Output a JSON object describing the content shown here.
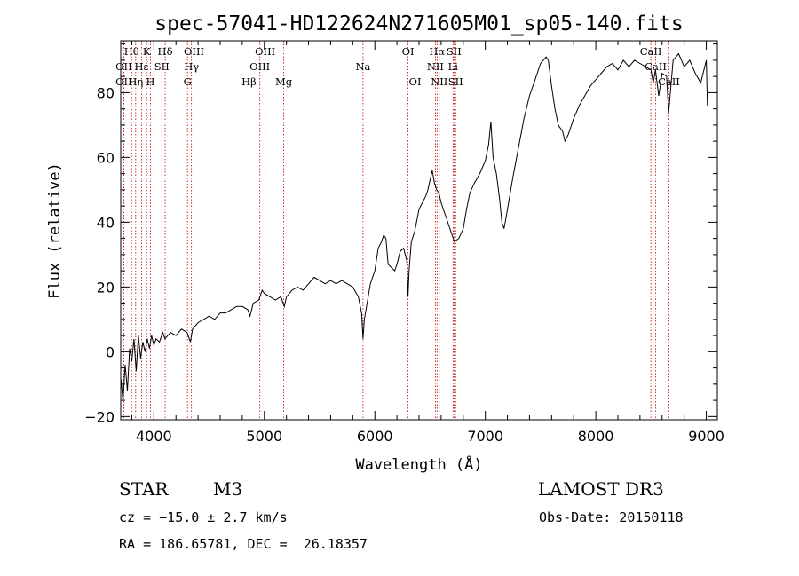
{
  "chart_data": {
    "type": "line",
    "title": "spec-57041-HD122624N271605M01_sp05-140.fits",
    "xlabel": "Wavelength (Å)",
    "ylabel": "Flux (relative)",
    "xlim": [
      3700,
      9100
    ],
    "ylim": [
      -21,
      96
    ],
    "xticks": [
      4000,
      5000,
      6000,
      7000,
      8000,
      9000
    ],
    "yticks": [
      -20,
      0,
      20,
      40,
      60,
      80
    ],
    "series": [
      {
        "name": "spectrum",
        "points": [
          [
            3700,
            -8
          ],
          [
            3720,
            -15
          ],
          [
            3740,
            -4
          ],
          [
            3760,
            -12
          ],
          [
            3780,
            1
          ],
          [
            3800,
            -3
          ],
          [
            3820,
            4
          ],
          [
            3840,
            -6
          ],
          [
            3860,
            5
          ],
          [
            3880,
            -2
          ],
          [
            3900,
            3
          ],
          [
            3920,
            0
          ],
          [
            3940,
            4
          ],
          [
            3960,
            1
          ],
          [
            3980,
            5
          ],
          [
            4000,
            2
          ],
          [
            4020,
            4
          ],
          [
            4050,
            3
          ],
          [
            4080,
            6
          ],
          [
            4100,
            4
          ],
          [
            4150,
            6
          ],
          [
            4200,
            5
          ],
          [
            4250,
            7
          ],
          [
            4300,
            6
          ],
          [
            4330,
            3
          ],
          [
            4350,
            7
          ],
          [
            4400,
            9
          ],
          [
            4450,
            10
          ],
          [
            4500,
            11
          ],
          [
            4550,
            10
          ],
          [
            4600,
            12
          ],
          [
            4650,
            12
          ],
          [
            4700,
            13
          ],
          [
            4750,
            14
          ],
          [
            4800,
            14
          ],
          [
            4850,
            13
          ],
          [
            4870,
            11
          ],
          [
            4900,
            15
          ],
          [
            4950,
            16
          ],
          [
            4980,
            19
          ],
          [
            5000,
            18
          ],
          [
            5050,
            17
          ],
          [
            5100,
            16
          ],
          [
            5150,
            17
          ],
          [
            5180,
            14
          ],
          [
            5200,
            17
          ],
          [
            5250,
            19
          ],
          [
            5300,
            20
          ],
          [
            5350,
            19
          ],
          [
            5400,
            21
          ],
          [
            5450,
            23
          ],
          [
            5500,
            22
          ],
          [
            5550,
            21
          ],
          [
            5600,
            22
          ],
          [
            5650,
            21
          ],
          [
            5700,
            22
          ],
          [
            5750,
            21
          ],
          [
            5800,
            20
          ],
          [
            5850,
            17
          ],
          [
            5880,
            12
          ],
          [
            5893,
            4
          ],
          [
            5905,
            10
          ],
          [
            5930,
            15
          ],
          [
            5960,
            21
          ],
          [
            6000,
            25
          ],
          [
            6030,
            32
          ],
          [
            6060,
            34
          ],
          [
            6080,
            36
          ],
          [
            6100,
            35
          ],
          [
            6120,
            27
          ],
          [
            6150,
            26
          ],
          [
            6180,
            25
          ],
          [
            6200,
            27
          ],
          [
            6230,
            31
          ],
          [
            6260,
            32
          ],
          [
            6290,
            28
          ],
          [
            6300,
            17
          ],
          [
            6310,
            25
          ],
          [
            6330,
            34
          ],
          [
            6360,
            37
          ],
          [
            6400,
            44
          ],
          [
            6430,
            46
          ],
          [
            6460,
            48
          ],
          [
            6480,
            50
          ],
          [
            6500,
            53
          ],
          [
            6520,
            56
          ],
          [
            6540,
            52
          ],
          [
            6560,
            50
          ],
          [
            6580,
            49
          ],
          [
            6600,
            46
          ],
          [
            6640,
            42
          ],
          [
            6680,
            38
          ],
          [
            6700,
            36
          ],
          [
            6720,
            34
          ],
          [
            6760,
            35
          ],
          [
            6800,
            38
          ],
          [
            6830,
            44
          ],
          [
            6860,
            49
          ],
          [
            6900,
            52
          ],
          [
            6950,
            55
          ],
          [
            7000,
            59
          ],
          [
            7030,
            64
          ],
          [
            7050,
            71
          ],
          [
            7070,
            60
          ],
          [
            7100,
            55
          ],
          [
            7130,
            47
          ],
          [
            7150,
            40
          ],
          [
            7170,
            38
          ],
          [
            7200,
            44
          ],
          [
            7250,
            54
          ],
          [
            7300,
            63
          ],
          [
            7350,
            72
          ],
          [
            7400,
            79
          ],
          [
            7450,
            84
          ],
          [
            7500,
            89
          ],
          [
            7550,
            91
          ],
          [
            7570,
            90
          ],
          [
            7600,
            82
          ],
          [
            7630,
            75
          ],
          [
            7660,
            70
          ],
          [
            7700,
            68
          ],
          [
            7720,
            65
          ],
          [
            7750,
            67
          ],
          [
            7800,
            72
          ],
          [
            7850,
            76
          ],
          [
            7900,
            79
          ],
          [
            7950,
            82
          ],
          [
            8000,
            84
          ],
          [
            8050,
            86
          ],
          [
            8100,
            88
          ],
          [
            8150,
            89
          ],
          [
            8200,
            87
          ],
          [
            8250,
            90
          ],
          [
            8300,
            88
          ],
          [
            8350,
            90
          ],
          [
            8400,
            89
          ],
          [
            8450,
            88
          ],
          [
            8500,
            87
          ],
          [
            8520,
            83
          ],
          [
            8540,
            87
          ],
          [
            8570,
            79
          ],
          [
            8600,
            86
          ],
          [
            8640,
            85
          ],
          [
            8660,
            74
          ],
          [
            8700,
            90
          ],
          [
            8750,
            92
          ],
          [
            8800,
            88
          ],
          [
            8850,
            90
          ],
          [
            8900,
            86
          ],
          [
            8950,
            83
          ],
          [
            9000,
            90
          ],
          [
            9010,
            76
          ]
        ]
      }
    ],
    "spectral_lines": [
      {
        "label": "Hθ",
        "wavelength": 3798,
        "row": 0
      },
      {
        "label": "OII",
        "wavelength": 3727,
        "row": 1
      },
      {
        "label": "OII",
        "wavelength": 3727,
        "row": 2
      },
      {
        "label": "Hε",
        "wavelength": 3889,
        "row": 1
      },
      {
        "label": "Hη",
        "wavelength": 3835,
        "row": 2
      },
      {
        "label": "K",
        "wavelength": 3934,
        "row": 0
      },
      {
        "label": "H",
        "wavelength": 3969,
        "row": 2
      },
      {
        "label": "SII",
        "wavelength": 4072,
        "row": 1
      },
      {
        "label": "Hδ",
        "wavelength": 4102,
        "row": 0
      },
      {
        "label": "OIII",
        "wavelength": 4363,
        "row": 0
      },
      {
        "label": "Hγ",
        "wavelength": 4340,
        "row": 1
      },
      {
        "label": "G",
        "wavelength": 4304,
        "row": 2
      },
      {
        "label": "Hβ",
        "wavelength": 4861,
        "row": 2
      },
      {
        "label": "OIII",
        "wavelength": 4959,
        "row": 1
      },
      {
        "label": "OIII",
        "wavelength": 5007,
        "row": 0
      },
      {
        "label": "Mg",
        "wavelength": 5175,
        "row": 2
      },
      {
        "label": "Na",
        "wavelength": 5893,
        "row": 1
      },
      {
        "label": "OI",
        "wavelength": 6300,
        "row": 0
      },
      {
        "label": "OI",
        "wavelength": 6364,
        "row": 2
      },
      {
        "label": "Hα",
        "wavelength": 6563,
        "row": 0
      },
      {
        "label": "NII",
        "wavelength": 6548,
        "row": 1
      },
      {
        "label": "NII",
        "wavelength": 6583,
        "row": 2
      },
      {
        "label": "SII",
        "wavelength": 6716,
        "row": 0
      },
      {
        "label": "Li",
        "wavelength": 6708,
        "row": 1
      },
      {
        "label": "SII",
        "wavelength": 6731,
        "row": 2
      },
      {
        "label": "CaII",
        "wavelength": 8498,
        "row": 0
      },
      {
        "label": "CaII",
        "wavelength": 8542,
        "row": 1
      },
      {
        "label": "CaII",
        "wavelength": 8662,
        "row": 2
      }
    ]
  },
  "info": {
    "object_class": "STAR",
    "subclass": "M3",
    "survey": "LAMOST DR3",
    "redshift": "cz = −15.0 ± 2.7 km/s",
    "obs_date": "Obs-Date: 20150118",
    "coords": "RA = 186.65781, DEC =  26.18357"
  }
}
